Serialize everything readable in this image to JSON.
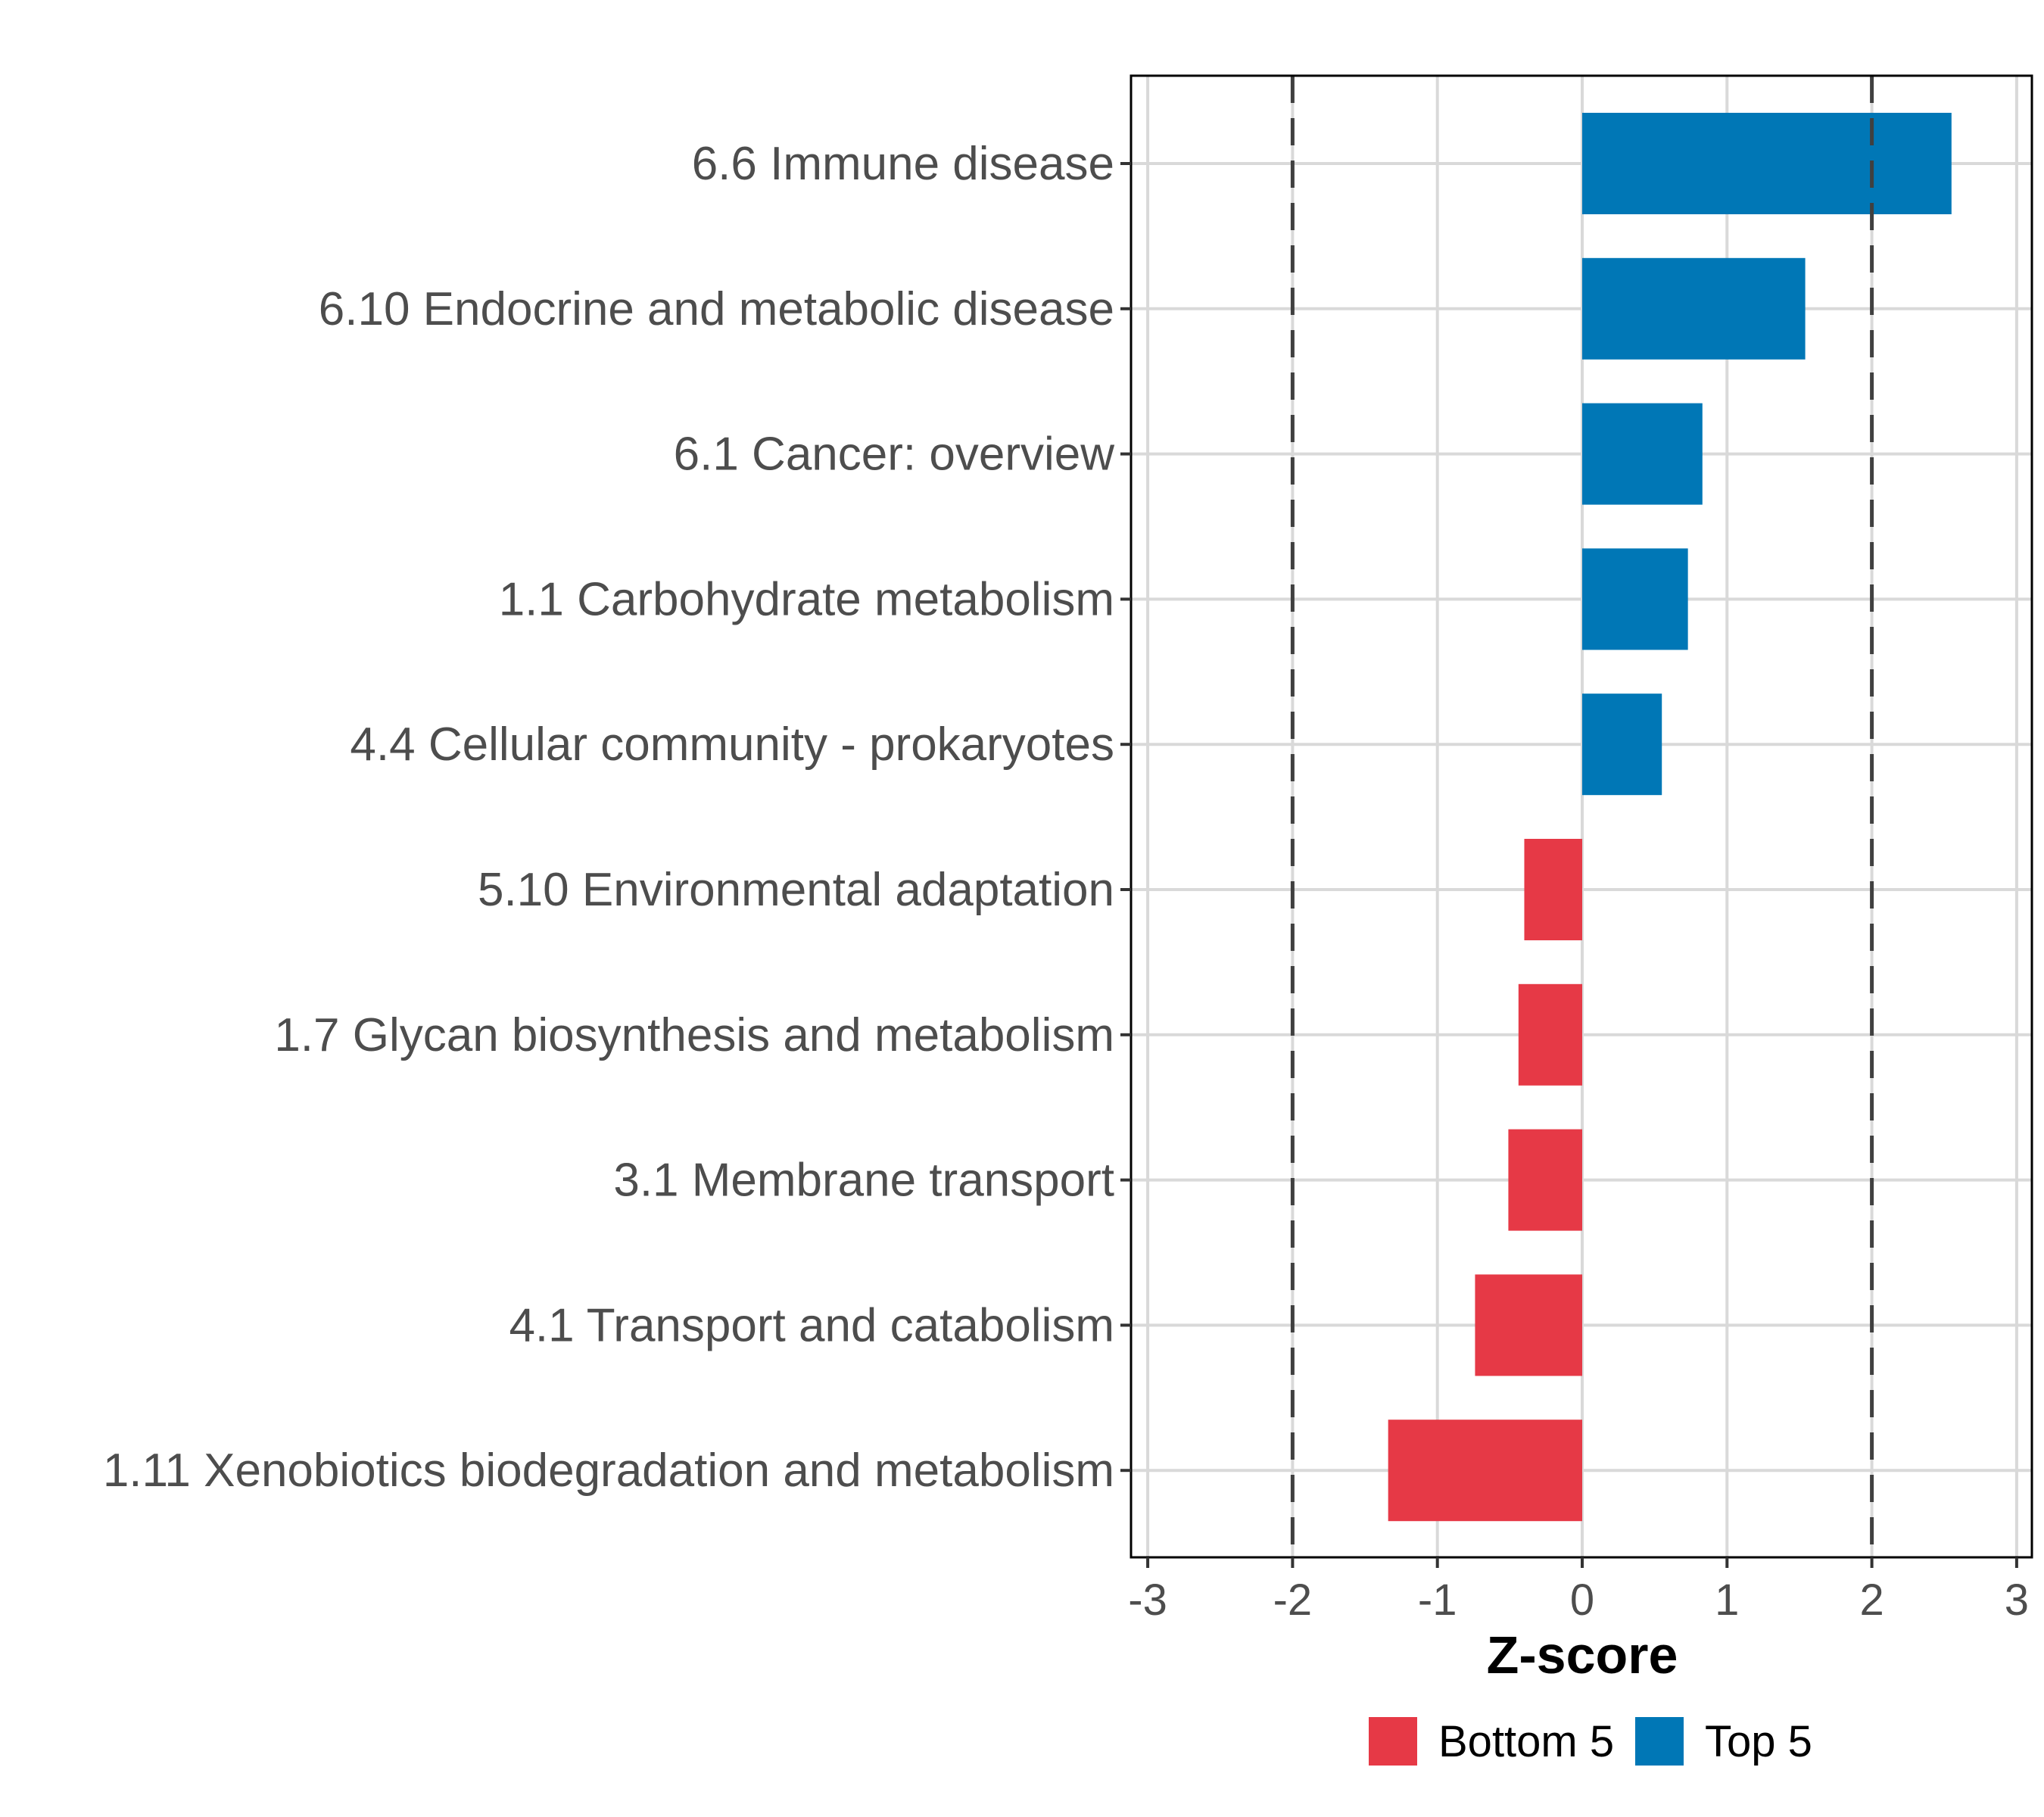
{
  "chart_data": {
    "type": "bar",
    "orientation": "horizontal",
    "title": "",
    "xlabel": "Z-score",
    "ylabel": "",
    "xlim": [
      -3.1,
      3.1
    ],
    "x_ticks": [
      -3,
      -2,
      -1,
      0,
      1,
      2,
      3
    ],
    "x_tick_labels": [
      "-3",
      "-2",
      "-1",
      "0",
      "1",
      "2",
      "3"
    ],
    "reference_lines": [
      -2,
      2
    ],
    "grid": true,
    "legend_position": "bottom",
    "categories": [
      "6.6 Immune disease",
      "6.10 Endocrine and metabolic disease",
      "6.1 Cancer: overview",
      "1.1 Carbohydrate metabolism",
      "4.4 Cellular community - prokaryotes",
      "5.10 Environmental adaptation",
      "1.7 Glycan biosynthesis and metabolism",
      "3.1 Membrane transport",
      "4.1 Transport and catabolism",
      "1.11 Xenobiotics biodegradation and metabolism"
    ],
    "values": [
      2.55,
      1.54,
      0.83,
      0.73,
      0.55,
      -0.4,
      -0.44,
      -0.51,
      -0.74,
      -1.34
    ],
    "groups": [
      "Top 5",
      "Top 5",
      "Top 5",
      "Top 5",
      "Top 5",
      "Bottom 5",
      "Bottom 5",
      "Bottom 5",
      "Bottom 5",
      "Bottom 5"
    ],
    "legend": [
      {
        "name": "Bottom 5",
        "color": "#e63946"
      },
      {
        "name": "Top 5",
        "color": "#0077b6"
      }
    ]
  },
  "colors": {
    "Top 5": "#0077b6",
    "Bottom 5": "#e63946",
    "grid": "#d9d9d9",
    "reference_line": "#404040"
  }
}
